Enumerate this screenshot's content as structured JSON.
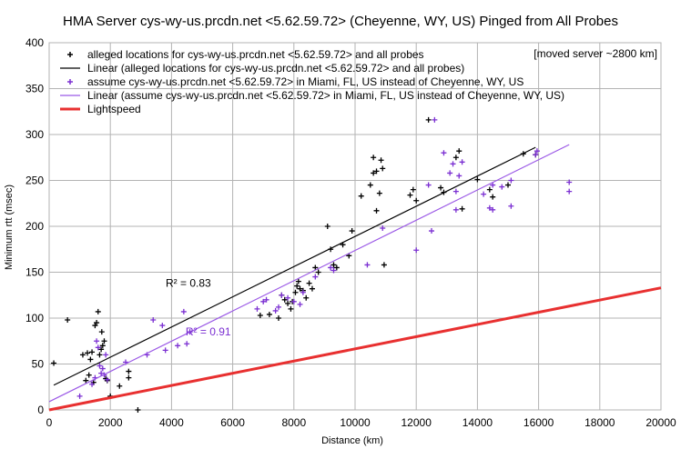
{
  "chart_data": {
    "type": "scatter",
    "title": "HMA Server cys-wy-us.prcdn.net <5.62.59.72> (Cheyenne, WY, US) Pinged from All Probes",
    "xlabel": "Distance (km)",
    "ylabel": "Minimum rtt (msec)",
    "xlim": [
      0,
      20000
    ],
    "ylim": [
      0,
      400
    ],
    "xticks": [
      0,
      2000,
      4000,
      6000,
      8000,
      10000,
      12000,
      14000,
      16000,
      18000,
      20000
    ],
    "yticks": [
      0,
      50,
      100,
      150,
      200,
      250,
      300,
      350,
      400
    ],
    "grid": true,
    "legend_position": "top-left",
    "annotation": "[moved server ~2800 km]",
    "series": [
      {
        "name": "alleged locations for cys-wy-us.prcdn.net <5.62.59.72> and all probes",
        "kind": "points",
        "marker": "plus",
        "color": "#000000",
        "points": [
          [
            150,
            51
          ],
          [
            600,
            98
          ],
          [
            1100,
            60
          ],
          [
            1200,
            32
          ],
          [
            1250,
            62
          ],
          [
            1300,
            38
          ],
          [
            1350,
            55
          ],
          [
            1400,
            63
          ],
          [
            1450,
            30
          ],
          [
            1500,
            92
          ],
          [
            1550,
            95
          ],
          [
            1600,
            107
          ],
          [
            1650,
            60
          ],
          [
            1700,
            66
          ],
          [
            1720,
            85
          ],
          [
            1750,
            70
          ],
          [
            1800,
            75
          ],
          [
            1850,
            34
          ],
          [
            1900,
            32
          ],
          [
            2000,
            15
          ],
          [
            2300,
            26
          ],
          [
            2600,
            35
          ],
          [
            2600,
            42
          ],
          [
            2900,
            0
          ],
          [
            6900,
            103
          ],
          [
            7200,
            104
          ],
          [
            7500,
            100
          ],
          [
            7600,
            125
          ],
          [
            7700,
            120
          ],
          [
            7800,
            116
          ],
          [
            7900,
            110
          ],
          [
            7950,
            118
          ],
          [
            8050,
            128
          ],
          [
            8100,
            135
          ],
          [
            8150,
            140
          ],
          [
            8200,
            132
          ],
          [
            8300,
            130
          ],
          [
            8400,
            122
          ],
          [
            8500,
            138
          ],
          [
            8600,
            132
          ],
          [
            8700,
            155
          ],
          [
            8800,
            150
          ],
          [
            9100,
            200
          ],
          [
            9200,
            175
          ],
          [
            9300,
            158
          ],
          [
            9400,
            155
          ],
          [
            9600,
            180
          ],
          [
            9800,
            168
          ],
          [
            9900,
            195
          ],
          [
            10200,
            233
          ],
          [
            10500,
            245
          ],
          [
            10600,
            258
          ],
          [
            10600,
            275
          ],
          [
            10700,
            260
          ],
          [
            10700,
            217
          ],
          [
            10800,
            236
          ],
          [
            10850,
            272
          ],
          [
            10900,
            263
          ],
          [
            10950,
            158
          ],
          [
            11800,
            234
          ],
          [
            11900,
            240
          ],
          [
            12000,
            228
          ],
          [
            12400,
            316
          ],
          [
            12800,
            242
          ],
          [
            12900,
            237
          ],
          [
            13300,
            275
          ],
          [
            13400,
            282
          ],
          [
            13500,
            219
          ],
          [
            14000,
            251
          ],
          [
            14400,
            240
          ],
          [
            14500,
            232
          ],
          [
            15000,
            245
          ],
          [
            15500,
            279
          ],
          [
            15900,
            278
          ]
        ]
      },
      {
        "name": "Linear (alleged locations for cys-wy-us.prcdn.net <5.62.59.72> and all probes)",
        "kind": "line",
        "color": "#000000",
        "x": [
          150,
          15900
        ],
        "y": [
          27,
          286
        ]
      },
      {
        "name": "assume cys-wy-us.prcdn.net <5.62.59.72> in Miami, FL, US instead of Cheyenne, WY, US",
        "kind": "points",
        "marker": "plus",
        "color": "#7b2fd2",
        "points": [
          [
            1000,
            15
          ],
          [
            1400,
            28
          ],
          [
            1500,
            35
          ],
          [
            1550,
            75
          ],
          [
            1600,
            68
          ],
          [
            1650,
            48
          ],
          [
            1700,
            40
          ],
          [
            1750,
            45
          ],
          [
            1800,
            38
          ],
          [
            1850,
            60
          ],
          [
            1900,
            33
          ],
          [
            2500,
            52
          ],
          [
            3200,
            60
          ],
          [
            3400,
            98
          ],
          [
            3700,
            92
          ],
          [
            3800,
            65
          ],
          [
            4200,
            70
          ],
          [
            4400,
            107
          ],
          [
            4500,
            72
          ],
          [
            4600,
            85
          ],
          [
            6800,
            110
          ],
          [
            7000,
            118
          ],
          [
            7100,
            120
          ],
          [
            7400,
            108
          ],
          [
            7500,
            112
          ],
          [
            7600,
            125
          ],
          [
            7800,
            122
          ],
          [
            8000,
            118
          ],
          [
            8200,
            115
          ],
          [
            8300,
            128
          ],
          [
            8700,
            145
          ],
          [
            9200,
            155
          ],
          [
            9300,
            152
          ],
          [
            10400,
            158
          ],
          [
            10900,
            198
          ],
          [
            12000,
            174
          ],
          [
            12400,
            245
          ],
          [
            12500,
            195
          ],
          [
            12600,
            316
          ],
          [
            12900,
            280
          ],
          [
            13100,
            258
          ],
          [
            13200,
            268
          ],
          [
            13300,
            238
          ],
          [
            13300,
            218
          ],
          [
            13400,
            255
          ],
          [
            13500,
            270
          ],
          [
            14200,
            235
          ],
          [
            14400,
            220
          ],
          [
            14500,
            245
          ],
          [
            14500,
            218
          ],
          [
            14800,
            243
          ],
          [
            15100,
            222
          ],
          [
            15100,
            250
          ],
          [
            15900,
            278
          ],
          [
            15950,
            282
          ],
          [
            17000,
            248
          ],
          [
            17000,
            238
          ]
        ]
      },
      {
        "name": "Linear (assume cys-wy-us.prcdn.net <5.62.59.72> in Miami, FL, US instead of Cheyenne, WY, US)",
        "kind": "line",
        "color": "#9b59e6",
        "x": [
          0,
          17000
        ],
        "y": [
          9,
          289
        ]
      },
      {
        "name": "Lightspeed",
        "kind": "line",
        "color": "#e83030",
        "x": [
          0,
          20000
        ],
        "y": [
          0,
          133
        ]
      }
    ],
    "annotations": [
      {
        "text": "R² = 0.83",
        "x": 4550,
        "y": 134,
        "color": "#000000"
      },
      {
        "text": "R² = 0.91",
        "x": 5200,
        "y": 81,
        "color": "#7b2fd2"
      }
    ]
  }
}
